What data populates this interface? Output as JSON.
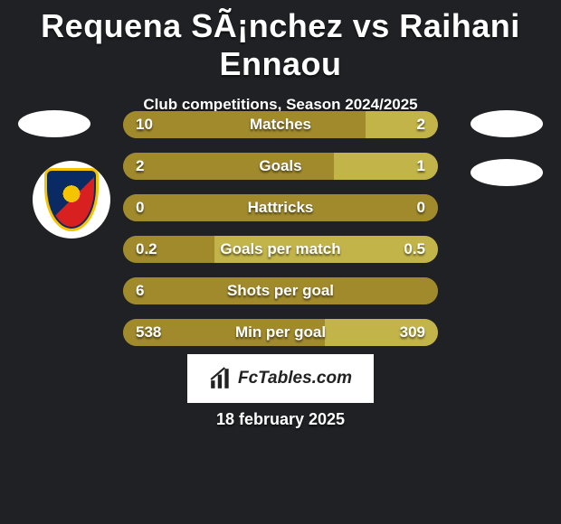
{
  "title": "Requena SÃ¡nchez vs Raihani Ennaou",
  "subtitle": "Club competitions, Season 2024/2025",
  "logo_text": "FcTables.com",
  "date": "18 february 2025",
  "colors": {
    "left": "#a08a2c",
    "right": "#c2b449",
    "track": "#a08a2c",
    "background": "#1f2124"
  },
  "bar_style": {
    "height": 30,
    "gap": 16,
    "radius": 15,
    "label_fontsize": 17,
    "value_fontsize": 17
  },
  "metrics": [
    {
      "label": "Matches",
      "left_val": "10",
      "right_val": "2",
      "left_pct": 77,
      "right_pct": 23
    },
    {
      "label": "Goals",
      "left_val": "2",
      "right_val": "1",
      "left_pct": 67,
      "right_pct": 33
    },
    {
      "label": "Hattricks",
      "left_val": "0",
      "right_val": "0",
      "left_pct": 100,
      "right_pct": 0
    },
    {
      "label": "Goals per match",
      "left_val": "0.2",
      "right_val": "0.5",
      "left_pct": 29,
      "right_pct": 71
    },
    {
      "label": "Shots per goal",
      "left_val": "6",
      "right_val": "",
      "left_pct": 100,
      "right_pct": 0
    },
    {
      "label": "Min per goal",
      "left_val": "538",
      "right_val": "309",
      "left_pct": 64,
      "right_pct": 36
    }
  ]
}
